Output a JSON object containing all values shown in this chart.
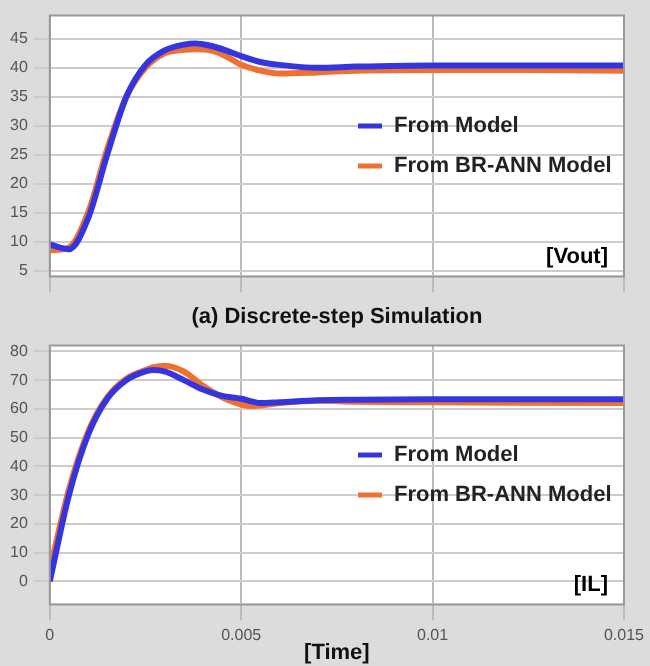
{
  "chart_data": [
    {
      "type": "line",
      "xlabel": "(a) Discrete-step Simulation",
      "annotations": [
        "[Vout]"
      ],
      "x": [
        0,
        0.0005,
        0.001,
        0.0015,
        0.002,
        0.0025,
        0.003,
        0.0035,
        0.0038,
        0.0042,
        0.0046,
        0.005,
        0.0055,
        0.006,
        0.007,
        0.008,
        0.01,
        0.012,
        0.015
      ],
      "xlim": [
        0,
        0.015
      ],
      "xticks": [
        {
          "value": 0,
          "label": null
        },
        {
          "value": 0.005,
          "label": null
        },
        {
          "value": 0.01,
          "label": null
        },
        {
          "value": 0.015,
          "label": null
        }
      ],
      "ylim": [
        4,
        49
      ],
      "yticks": [
        5,
        10,
        15,
        20,
        25,
        30,
        35,
        40,
        45
      ],
      "tick_labels": "y",
      "grid": true,
      "legend": "right",
      "series": [
        {
          "name": "From Model",
          "color": "#3535e0",
          "values": [
            9.5,
            8.7,
            14,
            25,
            35,
            40.5,
            43,
            44,
            44.2,
            43.8,
            43,
            42,
            41,
            40.5,
            40,
            40.2,
            40.4,
            40.4,
            40.4
          ]
        },
        {
          "name": "From BR-ANN Model",
          "color": "#f07030",
          "values": [
            8.5,
            9,
            15,
            26,
            35,
            40,
            42.5,
            43.1,
            43.2,
            43,
            42,
            40.5,
            39.5,
            39,
            39.2,
            39.5,
            39.6,
            39.6,
            39.5
          ]
        }
      ]
    },
    {
      "type": "line",
      "xlabel": "[Time]",
      "annotations": [
        "[IL]"
      ],
      "x": [
        0,
        0.0005,
        0.001,
        0.0015,
        0.002,
        0.0025,
        0.0027,
        0.003,
        0.0035,
        0.004,
        0.0045,
        0.005,
        0.0053,
        0.0055,
        0.006,
        0.007,
        0.008,
        0.01,
        0.012,
        0.015
      ],
      "xlim": [
        0,
        0.015
      ],
      "xticks": [
        0,
        0.005,
        0.01,
        0.015
      ],
      "ylim": [
        -8,
        82
      ],
      "yticks": [
        0,
        10,
        20,
        30,
        40,
        50,
        60,
        70,
        80
      ],
      "grid": true,
      "legend": "right",
      "series": [
        {
          "name": "From Model",
          "color": "#3535e0",
          "values": [
            0,
            30,
            51,
            63.5,
            70,
            73,
            73.5,
            73,
            70,
            66.7,
            64.5,
            63.5,
            62.5,
            62,
            62.3,
            63,
            63.2,
            63.3,
            63.3,
            63.3
          ]
        },
        {
          "name": "From BR-ANN Model",
          "color": "#f07030",
          "values": [
            4,
            32,
            52,
            64,
            70.5,
            73.5,
            74.5,
            75,
            73,
            68,
            64,
            61.5,
            61,
            61.2,
            62,
            62.8,
            62.5,
            62.3,
            62.1,
            62
          ]
        }
      ]
    }
  ]
}
